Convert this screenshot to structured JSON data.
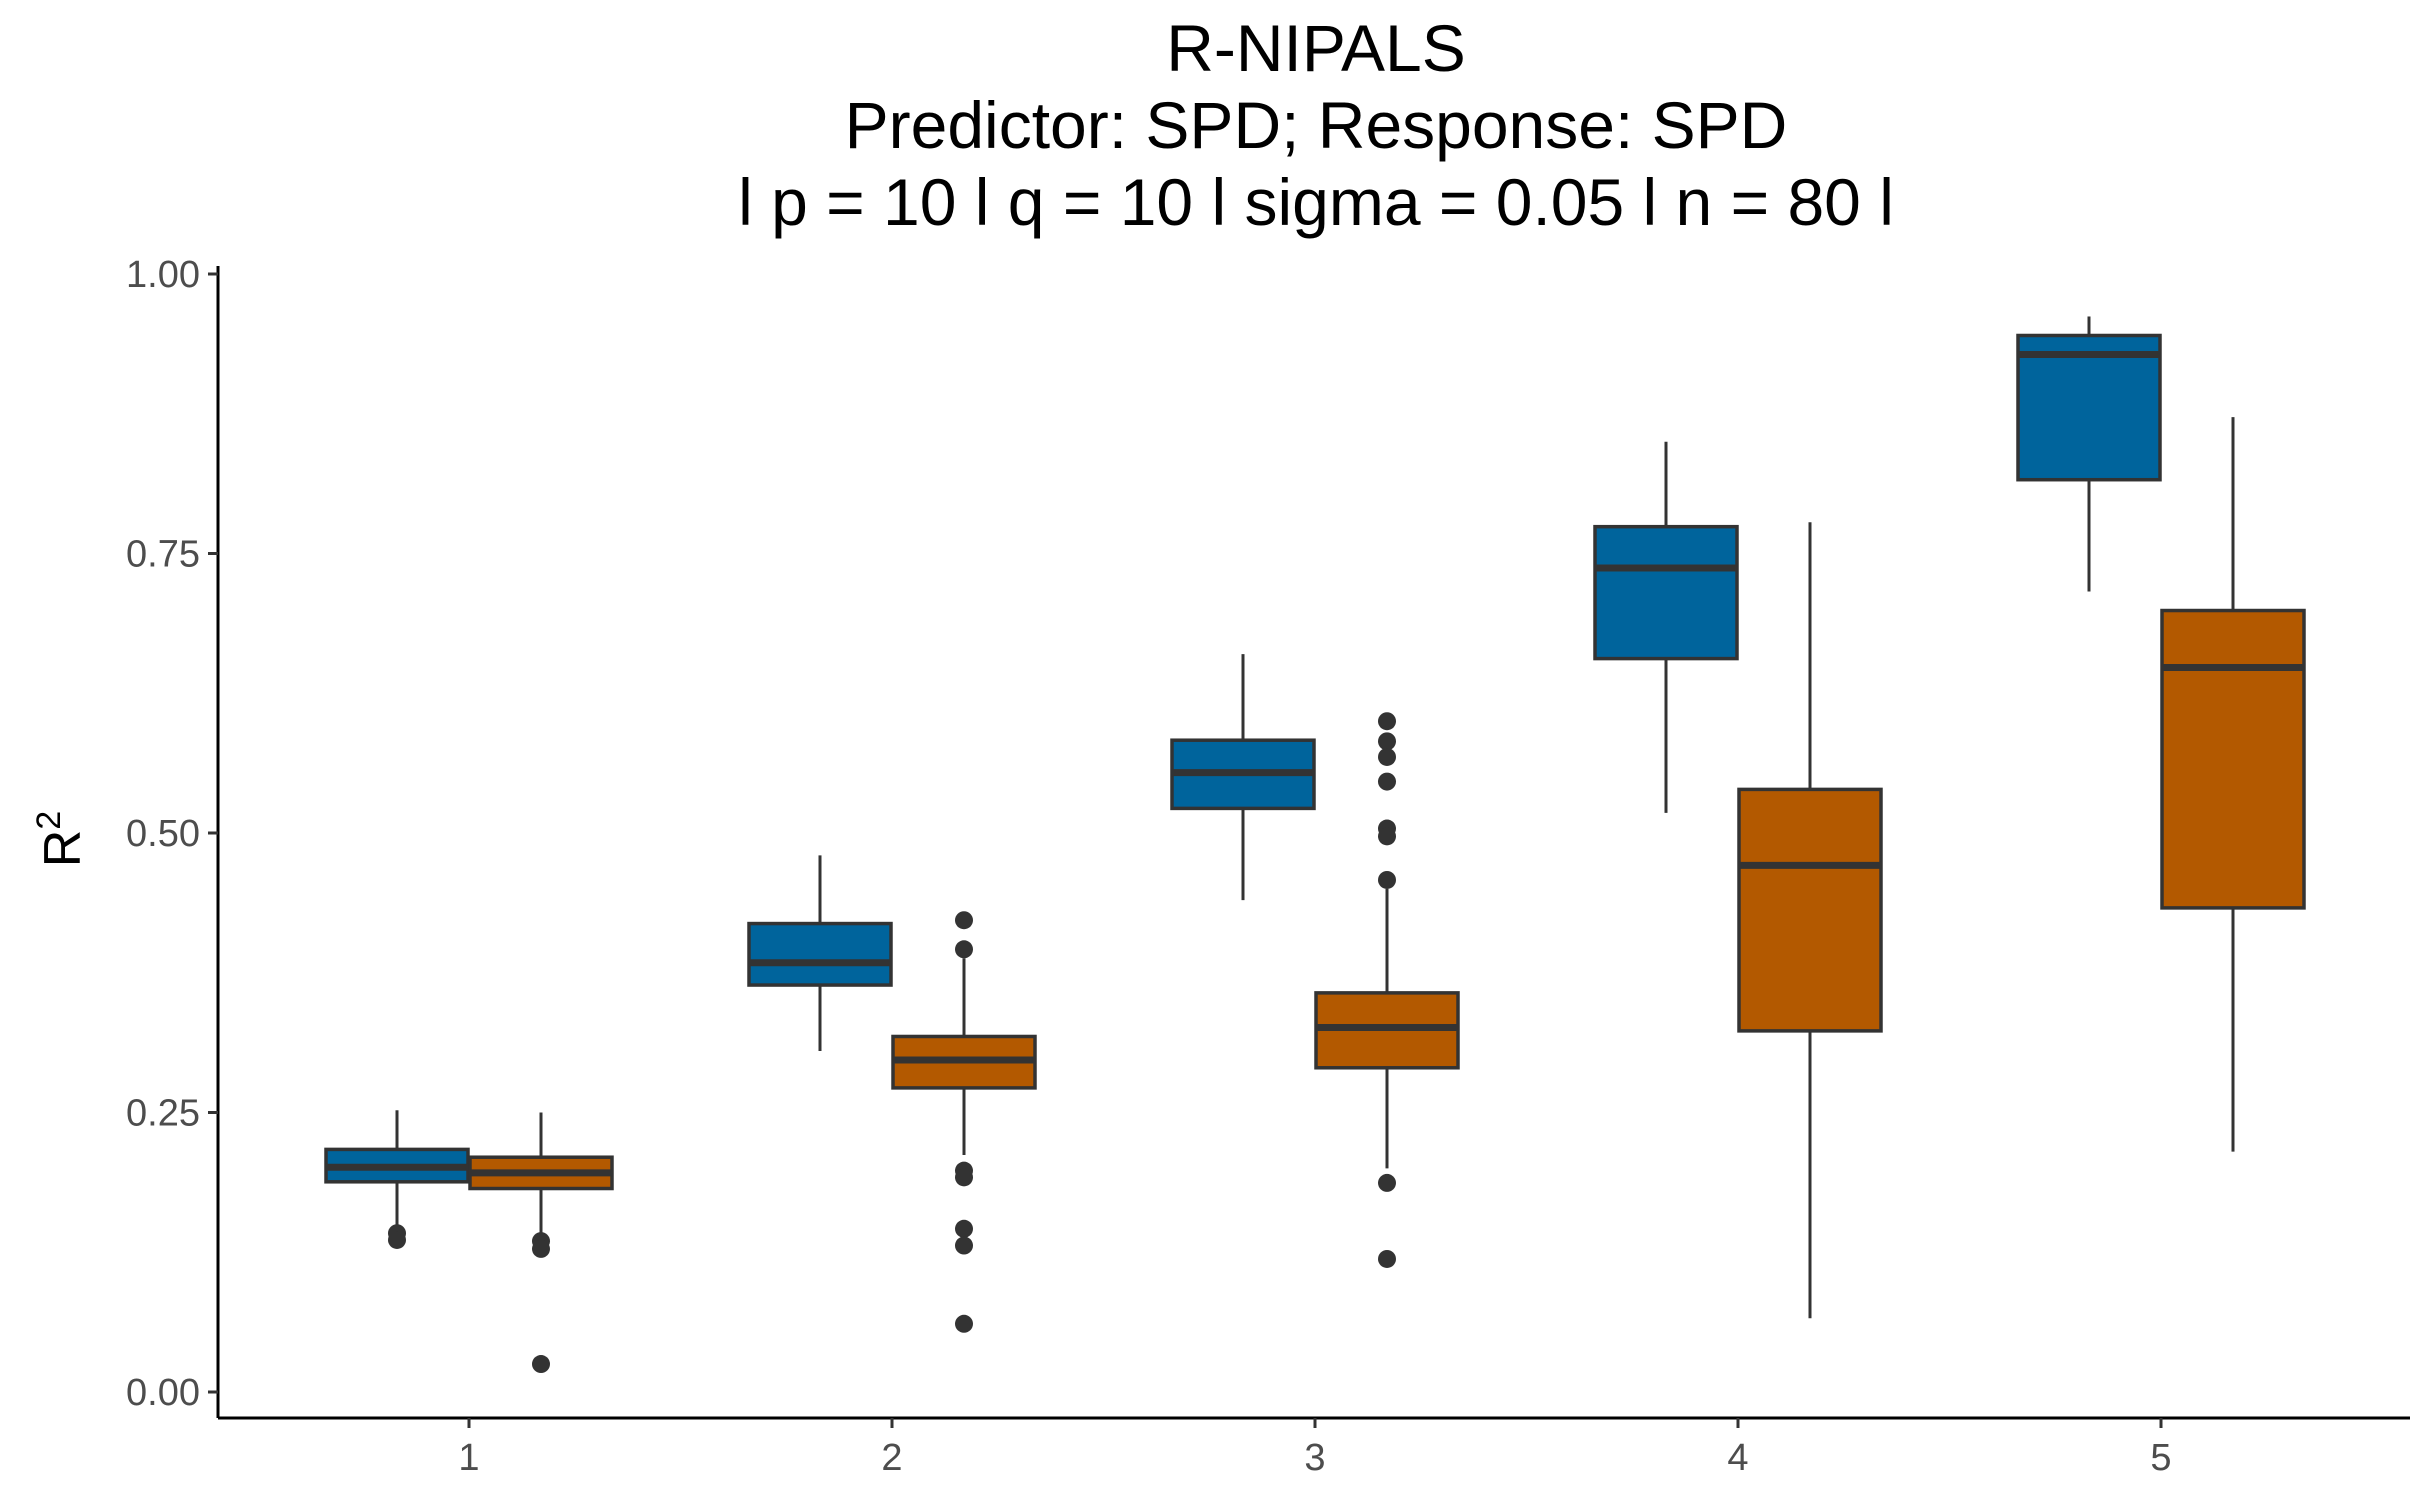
{
  "chart_data": {
    "type": "boxplot",
    "title": [
      "R-NIPALS",
      "Predictor: SPD; Response: SPD",
      "l p = 10 l q = 10 l sigma = 0.05 l n = 80 l"
    ],
    "xlabel": "",
    "ylabel": "R",
    "ylabel_superscript": "2",
    "categories": [
      "1",
      "2",
      "3",
      "4",
      "5"
    ],
    "yticks": [
      "0.00",
      "0.25",
      "0.50",
      "0.75",
      "1.00"
    ],
    "ylim": [
      0,
      1
    ],
    "legend": "none",
    "grid": false,
    "series": [
      {
        "color": "#00649c",
        "boxes": [
          {
            "category": "1",
            "whisker_low": 0.145,
            "q1": 0.188,
            "median": 0.201,
            "q3": 0.217,
            "whisker_high": 0.252,
            "outliers": [
              0.142,
              0.136
            ]
          },
          {
            "category": "2",
            "whisker_low": 0.305,
            "q1": 0.364,
            "median": 0.384,
            "q3": 0.419,
            "whisker_high": 0.48,
            "outliers": []
          },
          {
            "category": "3",
            "whisker_low": 0.44,
            "q1": 0.522,
            "median": 0.554,
            "q3": 0.583,
            "whisker_high": 0.66,
            "outliers": []
          },
          {
            "category": "4",
            "whisker_low": 0.518,
            "q1": 0.656,
            "median": 0.737,
            "q3": 0.774,
            "whisker_high": 0.85,
            "outliers": []
          },
          {
            "category": "5",
            "whisker_low": 0.716,
            "q1": 0.816,
            "median": 0.928,
            "q3": 0.945,
            "whisker_high": 0.962,
            "outliers": []
          }
        ]
      },
      {
        "color": "#b35900",
        "boxes": [
          {
            "category": "1",
            "whisker_low": 0.14,
            "q1": 0.182,
            "median": 0.196,
            "q3": 0.21,
            "whisker_high": 0.25,
            "outliers": [
              0.135,
              0.128,
              0.025
            ]
          },
          {
            "category": "2",
            "whisker_low": 0.212,
            "q1": 0.272,
            "median": 0.297,
            "q3": 0.318,
            "whisker_high": 0.388,
            "outliers": [
              0.422,
              0.396,
              0.198,
              0.192,
              0.146,
              0.131,
              0.061
            ]
          },
          {
            "category": "3",
            "whisker_low": 0.2,
            "q1": 0.29,
            "median": 0.326,
            "q3": 0.357,
            "whisker_high": 0.45,
            "outliers": [
              0.6,
              0.582,
              0.568,
              0.546,
              0.504,
              0.497,
              0.458,
              0.187,
              0.119
            ]
          },
          {
            "category": "4",
            "whisker_low": 0.066,
            "q1": 0.323,
            "median": 0.471,
            "q3": 0.539,
            "whisker_high": 0.778,
            "outliers": []
          },
          {
            "category": "5",
            "whisker_low": 0.215,
            "q1": 0.433,
            "median": 0.648,
            "q3": 0.699,
            "whisker_high": 0.872,
            "outliers": []
          }
        ]
      }
    ]
  }
}
